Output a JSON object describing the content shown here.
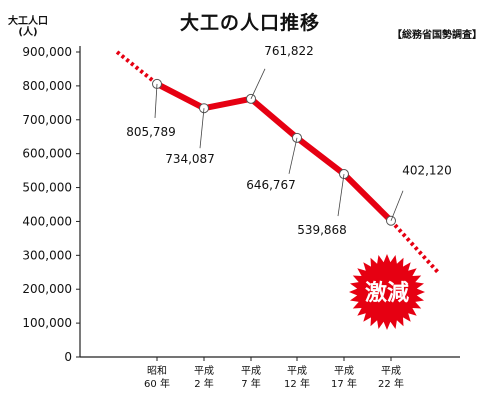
{
  "header": {
    "title": "大工の人口推移",
    "source": "【総務省国勢調査】",
    "unit_top": "大工人口",
    "unit_bottom": "(人)"
  },
  "colors": {
    "line": "#e60012",
    "burst": "#e60012",
    "axis": "#222222",
    "marker_fill": "#ffffff"
  },
  "chart_data": {
    "type": "line",
    "title": "大工の人口推移",
    "ylabel": "大工人口 (人)",
    "xlabel": "",
    "ylim": [
      0,
      900000
    ],
    "yticks": [
      {
        "value": 0,
        "label": "0"
      },
      {
        "value": 100000,
        "label": "100,000"
      },
      {
        "value": 200000,
        "label": "200,000"
      },
      {
        "value": 300000,
        "label": "300,000"
      },
      {
        "value": 400000,
        "label": "400,000"
      },
      {
        "value": 500000,
        "label": "500,000"
      },
      {
        "value": 600000,
        "label": "600,000"
      },
      {
        "value": 700000,
        "label": "700,000"
      },
      {
        "value": 800000,
        "label": "800,000"
      },
      {
        "value": 900000,
        "label": "900,000"
      }
    ],
    "categories": [
      {
        "era": "昭和",
        "year": "60 年"
      },
      {
        "era": "平成",
        "year": "2 年"
      },
      {
        "era": "平成",
        "year": "7 年"
      },
      {
        "era": "平成",
        "year": "12 年"
      },
      {
        "era": "平成",
        "year": "17 年"
      },
      {
        "era": "平成",
        "year": "22 年"
      }
    ],
    "values": [
      805789,
      734087,
      761822,
      646767,
      539868,
      402120
    ],
    "data_labels": [
      "805,789",
      "734,087",
      "761,822",
      "646,767",
      "539,868",
      "402,120"
    ],
    "trend_before": 900000,
    "trend_after": 250000,
    "grid": false,
    "annotation": "激減"
  }
}
